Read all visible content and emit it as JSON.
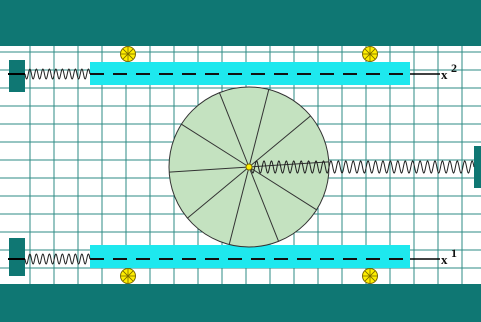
{
  "colors": {
    "background": "#ffffff",
    "grid": "#2e8b84",
    "wall": "#0f7773",
    "plank": "#1ee8ee",
    "disk_fill": "#c4e2c0",
    "disk_edge": "#333333",
    "spring": "#222222",
    "axis_line": "#000000",
    "roller_fill": "#ffee00",
    "roller_edge": "#7a6a00"
  },
  "upper_axis": {
    "symbol": "x",
    "subscript": "2"
  },
  "lower_axis": {
    "symbol": "x",
    "subscript": "1"
  },
  "disk": {
    "spokes": 10
  },
  "icons": {
    "roller": "roller-wheel-icon",
    "spring": "coil-spring-icon",
    "disk": "rolling-disk-icon"
  }
}
